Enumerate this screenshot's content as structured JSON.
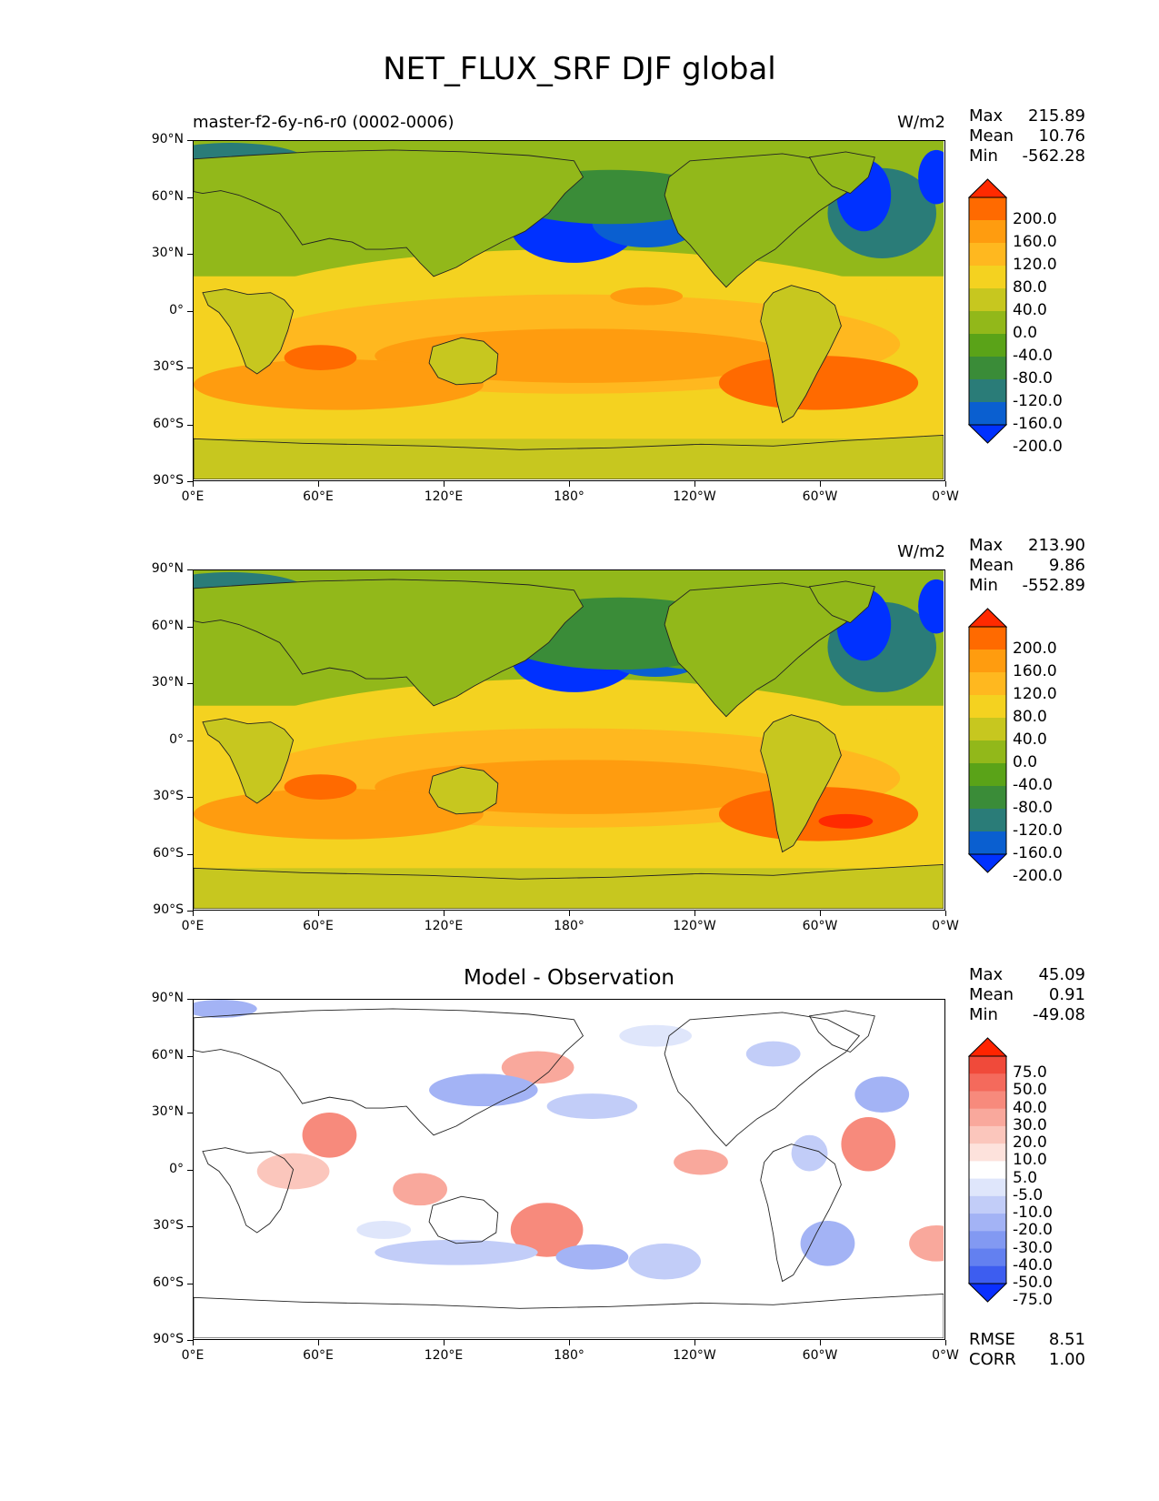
{
  "figure": {
    "title": "NET_FLUX_SRF DJF global"
  },
  "axis": {
    "lat_ticks": [
      "90°N",
      "60°N",
      "30°N",
      "0°",
      "30°S",
      "60°S",
      "90°S"
    ],
    "lon_ticks": [
      "0°E",
      "60°E",
      "120°E",
      "180°",
      "120°W",
      "60°W",
      "0°W"
    ]
  },
  "panels": [
    {
      "id": "test",
      "left_title": "master-f2-6y-n6-r0 (0002-0006)",
      "center_title": "",
      "units": "W/m2",
      "stats": [
        {
          "label": "Max",
          "value": "215.89"
        },
        {
          "label": "Mean",
          "value": "10.76"
        },
        {
          "label": "Min",
          "value": "-562.28"
        }
      ],
      "extra_stats": [],
      "colorbar": {
        "levels": [
          "200.0",
          "160.0",
          "120.0",
          "80.0",
          "40.0",
          "0.0",
          "-40.0",
          "-80.0",
          "-120.0",
          "-160.0",
          "-200.0"
        ],
        "colors": [
          "#ff2a00",
          "#ff6a00",
          "#ff9c0f",
          "#ffb81f",
          "#f4d220",
          "#c7c71f",
          "#92b81a",
          "#5aa318",
          "#3a8c38",
          "#2a7c78",
          "#0a5fd0",
          "#0031ff"
        ]
      }
    },
    {
      "id": "reference",
      "left_title": "",
      "center_title": "",
      "units": "W/m2",
      "stats": [
        {
          "label": "Max",
          "value": "213.90"
        },
        {
          "label": "Mean",
          "value": "9.86"
        },
        {
          "label": "Min",
          "value": "-552.89"
        }
      ],
      "extra_stats": [],
      "colorbar": {
        "levels": [
          "200.0",
          "160.0",
          "120.0",
          "80.0",
          "40.0",
          "0.0",
          "-40.0",
          "-80.0",
          "-120.0",
          "-160.0",
          "-200.0"
        ],
        "colors": [
          "#ff2a00",
          "#ff6a00",
          "#ff9c0f",
          "#ffb81f",
          "#f4d220",
          "#c7c71f",
          "#92b81a",
          "#5aa318",
          "#3a8c38",
          "#2a7c78",
          "#0a5fd0",
          "#0031ff"
        ]
      }
    },
    {
      "id": "difference",
      "left_title": "",
      "center_title": "Model - Observation",
      "units": "",
      "stats": [
        {
          "label": "Max",
          "value": "45.09"
        },
        {
          "label": "Mean",
          "value": "0.91"
        },
        {
          "label": "Min",
          "value": "-49.08"
        }
      ],
      "extra_stats": [
        {
          "label": "RMSE",
          "value": "8.51"
        },
        {
          "label": "CORR",
          "value": "1.00"
        }
      ],
      "colorbar": {
        "levels": [
          "75.0",
          "50.0",
          "40.0",
          "30.0",
          "20.0",
          "10.0",
          "5.0",
          "-5.0",
          "-10.0",
          "-20.0",
          "-30.0",
          "-40.0",
          "-50.0",
          "-75.0"
        ],
        "colors": [
          "#ff2400",
          "#f04a3a",
          "#f46a5c",
          "#f78a7c",
          "#f9a89c",
          "#fbc6bc",
          "#fde2dc",
          "#ffffff",
          "#dfe6fb",
          "#c2cdf8",
          "#a3b3f5",
          "#8299f2",
          "#6380f0",
          "#3d5df0",
          "#0a2fff"
        ]
      }
    }
  ]
}
